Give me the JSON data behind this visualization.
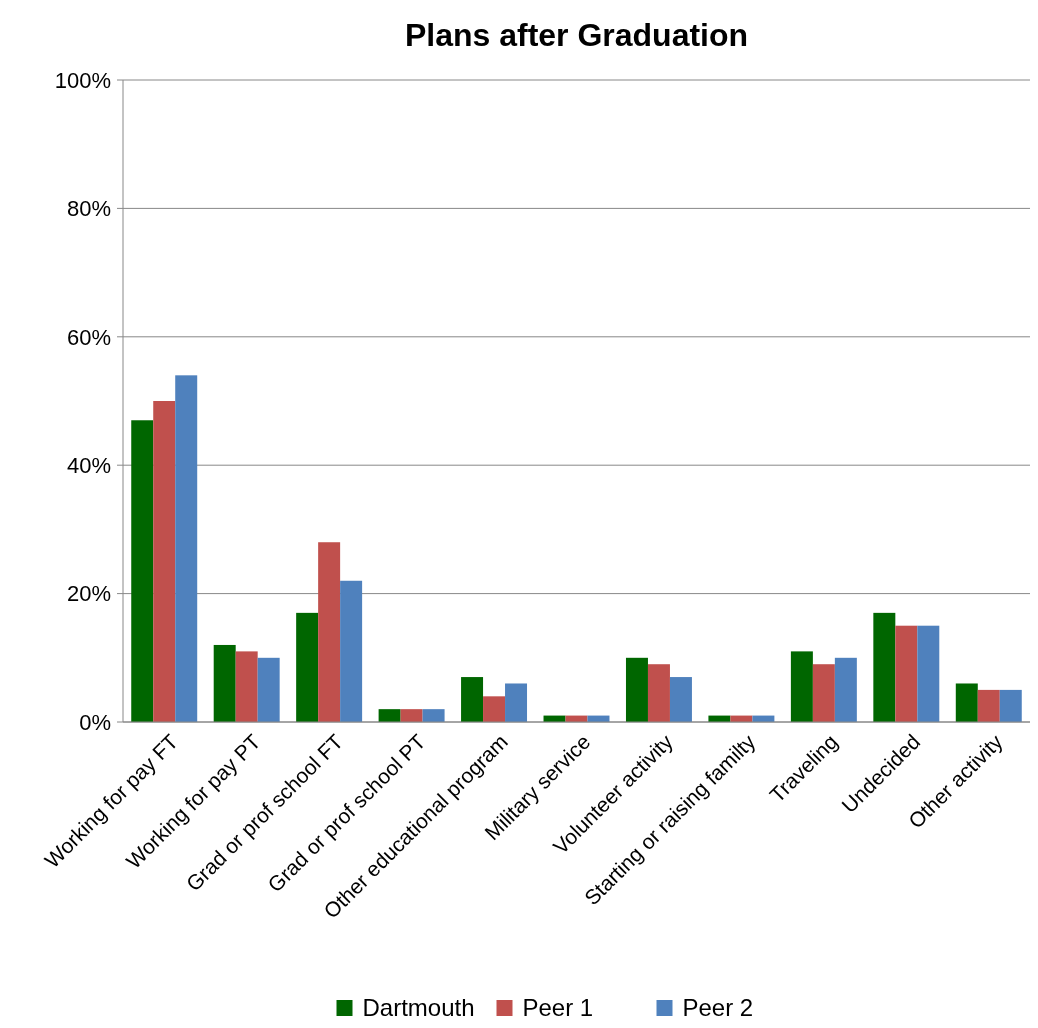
{
  "chart_data": {
    "type": "bar",
    "title": "Plans after Graduation",
    "categories": [
      "Working for pay FT",
      "Working for pay PT",
      "Grad or prof school FT",
      "Grad or prof school PT",
      "Other educational program",
      "Military service",
      "Volunteer activity",
      "Starting or raising familty",
      "Traveling",
      "Undecided",
      "Other activity"
    ],
    "series": [
      {
        "name": "Dartmouth",
        "color": "#006600",
        "values": [
          47,
          12,
          17,
          2,
          7,
          1,
          10,
          1,
          11,
          17,
          6
        ]
      },
      {
        "name": "Peer 1",
        "color": "#c0504d",
        "values": [
          50,
          11,
          28,
          2,
          4,
          1,
          9,
          1,
          9,
          15,
          5
        ]
      },
      {
        "name": "Peer 2",
        "color": "#4f81bd",
        "values": [
          54,
          10,
          22,
          2,
          6,
          1,
          7,
          1,
          10,
          15,
          5
        ]
      }
    ],
    "ylim": [
      0,
      100
    ],
    "yticks": [
      {
        "value": 0,
        "label": "0%"
      },
      {
        "value": 20,
        "label": "20%"
      },
      {
        "value": 40,
        "label": "40%"
      },
      {
        "value": 60,
        "label": "60%"
      },
      {
        "value": 80,
        "label": "80%"
      },
      {
        "value": 100,
        "label": "100%"
      }
    ],
    "grid": "y",
    "legend": "bottom"
  }
}
